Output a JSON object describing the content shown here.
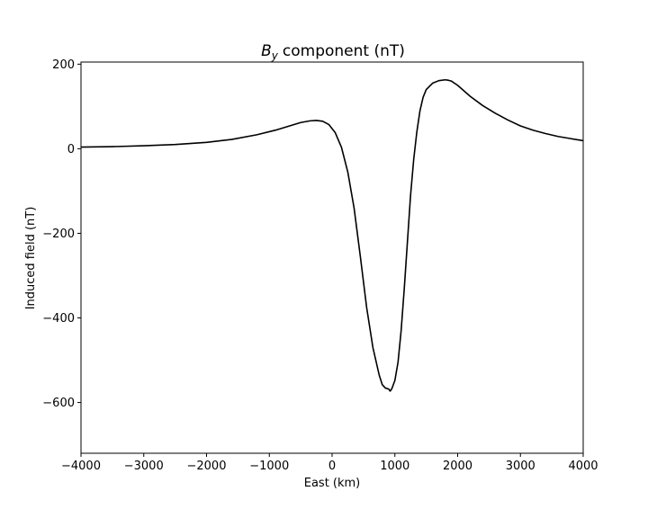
{
  "chart_data": {
    "type": "line",
    "title": "component (nT)",
    "title_symbol": "B",
    "title_subscript": "y",
    "xlabel": "East (km)",
    "ylabel": "Induced field (nT)",
    "xlim": [
      -4000,
      4000
    ],
    "ylim": [
      -720,
      205
    ],
    "xticks": [
      -4000,
      -3000,
      -2000,
      -1000,
      0,
      1000,
      2000,
      3000,
      4000
    ],
    "xtick_labels": [
      "−4000",
      "−3000",
      "−2000",
      "−1000",
      "0",
      "1000",
      "2000",
      "3000",
      "4000"
    ],
    "yticks": [
      200,
      0,
      -200,
      -400,
      -600
    ],
    "ytick_labels": [
      "200",
      "0",
      "−200",
      "−400",
      "−600"
    ],
    "grid": false,
    "line_color": "#000000",
    "series": [
      {
        "x": [
          -4000,
          -3500,
          -3000,
          -2500,
          -2000,
          -1600,
          -1200,
          -900,
          -700,
          -500,
          -350,
          -250,
          -150,
          -50,
          50,
          150,
          250,
          350,
          450,
          550,
          650,
          750,
          800,
          850,
          900,
          925,
          950,
          1000,
          1050,
          1100,
          1150,
          1200,
          1250,
          1300,
          1350,
          1400,
          1450,
          1500,
          1600,
          1700,
          1800,
          1850,
          1900,
          2000,
          2100,
          2200,
          2400,
          2600,
          2800,
          3000,
          3200,
          3400,
          3600,
          3800,
          4000
        ],
        "y": [
          4,
          5,
          7,
          10,
          15,
          22,
          33,
          44,
          53,
          62,
          66,
          67,
          65,
          57,
          38,
          3,
          -55,
          -140,
          -255,
          -375,
          -470,
          -535,
          -558,
          -566,
          -568,
          -573,
          -568,
          -548,
          -505,
          -430,
          -330,
          -220,
          -110,
          -25,
          40,
          90,
          122,
          140,
          155,
          161,
          163,
          162,
          160,
          150,
          137,
          124,
          102,
          84,
          68,
          54,
          44,
          36,
          29,
          24,
          19
        ]
      }
    ]
  }
}
